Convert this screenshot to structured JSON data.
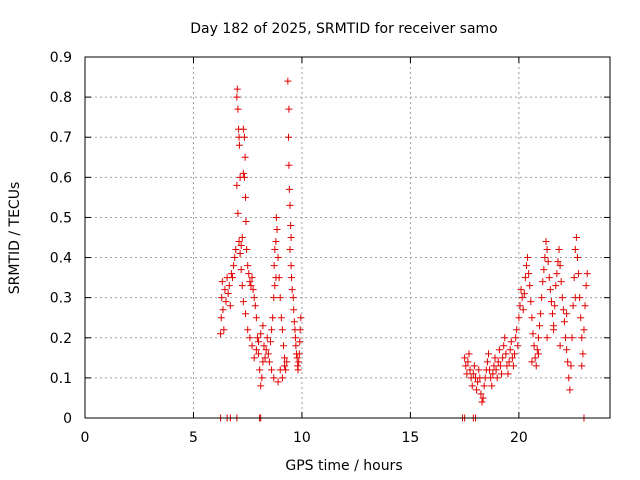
{
  "chart_data": {
    "type": "scatter",
    "title": "Day 182 of 2025, SRMTID for receiver samo",
    "xlabel": "GPS time / hours",
    "ylabel": "SRMTID / TECUs",
    "xlim": [
      0,
      24.2
    ],
    "ylim": [
      0,
      0.9
    ],
    "x_ticks": [
      0,
      5,
      10,
      15,
      20
    ],
    "x_tick_labels": [
      "0",
      "5",
      "10",
      "15",
      "20"
    ],
    "y_ticks": [
      0,
      0.1,
      0.2,
      0.3,
      0.4,
      0.5,
      0.6,
      0.7,
      0.8,
      0.9
    ],
    "y_tick_labels": [
      "0",
      "0.1",
      "0.2",
      "0.3",
      "0.4",
      "0.5",
      "0.6",
      "0.7",
      "0.8",
      "0.9"
    ],
    "grid": true,
    "marker": "plus",
    "color": "#e00000",
    "series": [
      {
        "name": "SRMTID",
        "points": [
          [
            6.25,
            0.0
          ],
          [
            6.55,
            0.0
          ],
          [
            6.7,
            0.0
          ],
          [
            7.0,
            0.0
          ],
          [
            8.05,
            0.0
          ],
          [
            8.1,
            0.0
          ],
          [
            17.4,
            0.0
          ],
          [
            17.5,
            0.0
          ],
          [
            17.9,
            0.0
          ],
          [
            18.0,
            0.0
          ],
          [
            23.0,
            0.0
          ],
          [
            6.25,
            0.21
          ],
          [
            6.28,
            0.25
          ],
          [
            6.3,
            0.3
          ],
          [
            6.33,
            0.34
          ],
          [
            6.36,
            0.27
          ],
          [
            6.4,
            0.22
          ],
          [
            6.45,
            0.32
          ],
          [
            6.5,
            0.29
          ],
          [
            6.55,
            0.35
          ],
          [
            6.6,
            0.31
          ],
          [
            6.65,
            0.33
          ],
          [
            6.7,
            0.28
          ],
          [
            6.75,
            0.36
          ],
          [
            6.8,
            0.35
          ],
          [
            6.85,
            0.38
          ],
          [
            6.9,
            0.4
          ],
          [
            6.95,
            0.42
          ],
          [
            7.0,
            0.8
          ],
          [
            7.02,
            0.82
          ],
          [
            7.05,
            0.77
          ],
          [
            7.08,
            0.72
          ],
          [
            7.1,
            0.7
          ],
          [
            7.12,
            0.68
          ],
          [
            7.15,
            0.6
          ],
          [
            7.0,
            0.58
          ],
          [
            7.05,
            0.51
          ],
          [
            7.1,
            0.44
          ],
          [
            7.15,
            0.41
          ],
          [
            7.2,
            0.43
          ],
          [
            7.25,
            0.45
          ],
          [
            7.3,
            0.61
          ],
          [
            7.35,
            0.6
          ],
          [
            7.3,
            0.72
          ],
          [
            7.35,
            0.7
          ],
          [
            7.38,
            0.65
          ],
          [
            7.4,
            0.55
          ],
          [
            7.42,
            0.49
          ],
          [
            7.45,
            0.42
          ],
          [
            7.5,
            0.38
          ],
          [
            7.55,
            0.36
          ],
          [
            7.6,
            0.34
          ],
          [
            7.65,
            0.33
          ],
          [
            7.7,
            0.35
          ],
          [
            7.75,
            0.32
          ],
          [
            7.8,
            0.3
          ],
          [
            7.85,
            0.28
          ],
          [
            7.9,
            0.25
          ],
          [
            7.95,
            0.2
          ],
          [
            8.0,
            0.16
          ],
          [
            8.05,
            0.12
          ],
          [
            8.1,
            0.08
          ],
          [
            8.15,
            0.1
          ],
          [
            8.2,
            0.14
          ],
          [
            7.2,
            0.37
          ],
          [
            7.25,
            0.33
          ],
          [
            7.3,
            0.29
          ],
          [
            7.4,
            0.26
          ],
          [
            7.5,
            0.22
          ],
          [
            7.6,
            0.2
          ],
          [
            7.7,
            0.18
          ],
          [
            7.8,
            0.15
          ],
          [
            7.9,
            0.17
          ],
          [
            8.0,
            0.19
          ],
          [
            8.1,
            0.21
          ],
          [
            8.2,
            0.23
          ],
          [
            8.25,
            0.18
          ],
          [
            8.3,
            0.15
          ],
          [
            8.35,
            0.17
          ],
          [
            8.4,
            0.2
          ],
          [
            8.45,
            0.16
          ],
          [
            8.5,
            0.14
          ],
          [
            8.55,
            0.19
          ],
          [
            8.6,
            0.22
          ],
          [
            8.65,
            0.25
          ],
          [
            8.7,
            0.3
          ],
          [
            8.75,
            0.33
          ],
          [
            8.8,
            0.35
          ],
          [
            8.72,
            0.38
          ],
          [
            8.75,
            0.42
          ],
          [
            8.8,
            0.44
          ],
          [
            8.82,
            0.5
          ],
          [
            8.85,
            0.47
          ],
          [
            8.9,
            0.4
          ],
          [
            8.95,
            0.35
          ],
          [
            9.0,
            0.3
          ],
          [
            9.05,
            0.25
          ],
          [
            9.1,
            0.22
          ],
          [
            9.15,
            0.18
          ],
          [
            9.2,
            0.15
          ],
          [
            9.25,
            0.12
          ],
          [
            9.3,
            0.14
          ],
          [
            9.35,
            0.84
          ],
          [
            9.4,
            0.77
          ],
          [
            9.38,
            0.7
          ],
          [
            9.4,
            0.63
          ],
          [
            9.42,
            0.57
          ],
          [
            9.45,
            0.53
          ],
          [
            9.48,
            0.48
          ],
          [
            9.5,
            0.45
          ],
          [
            9.45,
            0.42
          ],
          [
            9.5,
            0.38
          ],
          [
            9.52,
            0.35
          ],
          [
            9.55,
            0.32
          ],
          [
            9.6,
            0.3
          ],
          [
            9.62,
            0.27
          ],
          [
            9.65,
            0.24
          ],
          [
            9.68,
            0.22
          ],
          [
            9.7,
            0.2
          ],
          [
            9.72,
            0.18
          ],
          [
            9.75,
            0.16
          ],
          [
            9.78,
            0.15
          ],
          [
            9.8,
            0.13
          ],
          [
            9.82,
            0.12
          ],
          [
            9.85,
            0.14
          ],
          [
            9.88,
            0.16
          ],
          [
            9.9,
            0.19
          ],
          [
            9.92,
            0.22
          ],
          [
            9.95,
            0.25
          ],
          [
            8.6,
            0.12
          ],
          [
            8.7,
            0.1
          ],
          [
            8.9,
            0.09
          ],
          [
            9.0,
            0.12
          ],
          [
            9.1,
            0.1
          ],
          [
            9.2,
            0.13
          ],
          [
            17.5,
            0.15
          ],
          [
            17.55,
            0.13
          ],
          [
            17.6,
            0.11
          ],
          [
            17.65,
            0.14
          ],
          [
            17.7,
            0.16
          ],
          [
            17.75,
            0.12
          ],
          [
            17.8,
            0.1
          ],
          [
            17.85,
            0.08
          ],
          [
            17.9,
            0.11
          ],
          [
            17.95,
            0.13
          ],
          [
            18.0,
            0.1
          ],
          [
            18.05,
            0.07
          ],
          [
            18.1,
            0.09
          ],
          [
            18.15,
            0.12
          ],
          [
            18.2,
            0.1
          ],
          [
            18.25,
            0.06
          ],
          [
            18.3,
            0.04
          ],
          [
            18.35,
            0.05
          ],
          [
            18.4,
            0.08
          ],
          [
            18.45,
            0.1
          ],
          [
            18.5,
            0.12
          ],
          [
            18.55,
            0.14
          ],
          [
            18.6,
            0.16
          ],
          [
            18.65,
            0.12
          ],
          [
            18.7,
            0.1
          ],
          [
            18.75,
            0.08
          ],
          [
            18.8,
            0.11
          ],
          [
            18.85,
            0.13
          ],
          [
            18.9,
            0.15
          ],
          [
            18.95,
            0.12
          ],
          [
            19.0,
            0.1
          ],
          [
            19.05,
            0.14
          ],
          [
            19.1,
            0.17
          ],
          [
            19.15,
            0.13
          ],
          [
            19.2,
            0.11
          ],
          [
            19.25,
            0.15
          ],
          [
            19.3,
            0.18
          ],
          [
            19.35,
            0.2
          ],
          [
            19.4,
            0.16
          ],
          [
            19.45,
            0.13
          ],
          [
            19.5,
            0.11
          ],
          [
            19.55,
            0.14
          ],
          [
            19.6,
            0.17
          ],
          [
            19.65,
            0.19
          ],
          [
            19.7,
            0.15
          ],
          [
            19.75,
            0.13
          ],
          [
            19.8,
            0.16
          ],
          [
            19.85,
            0.2
          ],
          [
            19.9,
            0.22
          ],
          [
            19.95,
            0.18
          ],
          [
            20.0,
            0.25
          ],
          [
            20.05,
            0.28
          ],
          [
            20.1,
            0.32
          ],
          [
            20.15,
            0.3
          ],
          [
            20.2,
            0.27
          ],
          [
            20.25,
            0.31
          ],
          [
            20.3,
            0.35
          ],
          [
            20.35,
            0.38
          ],
          [
            20.4,
            0.4
          ],
          [
            20.45,
            0.36
          ],
          [
            20.5,
            0.33
          ],
          [
            20.55,
            0.29
          ],
          [
            20.6,
            0.25
          ],
          [
            20.65,
            0.21
          ],
          [
            20.7,
            0.18
          ],
          [
            20.75,
            0.15
          ],
          [
            20.8,
            0.13
          ],
          [
            20.85,
            0.17
          ],
          [
            20.9,
            0.2
          ],
          [
            20.95,
            0.23
          ],
          [
            21.0,
            0.26
          ],
          [
            21.05,
            0.3
          ],
          [
            21.1,
            0.34
          ],
          [
            21.15,
            0.37
          ],
          [
            21.2,
            0.4
          ],
          [
            21.25,
            0.44
          ],
          [
            21.3,
            0.42
          ],
          [
            21.35,
            0.39
          ],
          [
            21.4,
            0.35
          ],
          [
            21.45,
            0.32
          ],
          [
            21.5,
            0.29
          ],
          [
            21.55,
            0.26
          ],
          [
            21.6,
            0.23
          ],
          [
            21.65,
            0.28
          ],
          [
            21.7,
            0.33
          ],
          [
            21.75,
            0.36
          ],
          [
            21.8,
            0.39
          ],
          [
            21.85,
            0.42
          ],
          [
            21.9,
            0.38
          ],
          [
            21.95,
            0.34
          ],
          [
            22.0,
            0.3
          ],
          [
            22.05,
            0.27
          ],
          [
            22.1,
            0.24
          ],
          [
            22.15,
            0.2
          ],
          [
            22.2,
            0.17
          ],
          [
            22.25,
            0.14
          ],
          [
            22.3,
            0.1
          ],
          [
            22.35,
            0.07
          ],
          [
            22.4,
            0.13
          ],
          [
            22.45,
            0.2
          ],
          [
            22.5,
            0.28
          ],
          [
            22.55,
            0.35
          ],
          [
            22.6,
            0.42
          ],
          [
            22.65,
            0.45
          ],
          [
            22.7,
            0.4
          ],
          [
            22.75,
            0.36
          ],
          [
            22.8,
            0.3
          ],
          [
            22.85,
            0.25
          ],
          [
            22.9,
            0.2
          ],
          [
            22.95,
            0.16
          ],
          [
            23.0,
            0.22
          ],
          [
            23.05,
            0.28
          ],
          [
            23.1,
            0.33
          ],
          [
            23.15,
            0.36
          ],
          [
            20.6,
            0.14
          ],
          [
            20.9,
            0.16
          ],
          [
            21.3,
            0.2
          ],
          [
            21.6,
            0.22
          ],
          [
            21.9,
            0.18
          ],
          [
            22.2,
            0.26
          ],
          [
            22.6,
            0.3
          ],
          [
            22.9,
            0.13
          ]
        ]
      }
    ]
  }
}
